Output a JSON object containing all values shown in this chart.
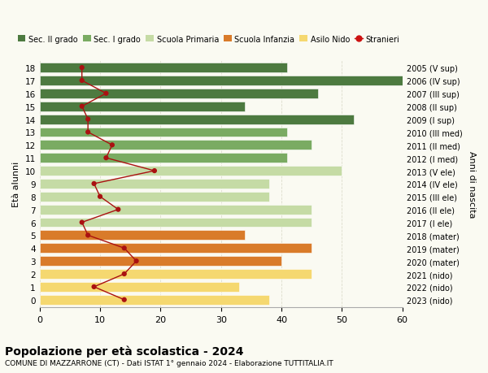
{
  "ages": [
    18,
    17,
    16,
    15,
    14,
    13,
    12,
    11,
    10,
    9,
    8,
    7,
    6,
    5,
    4,
    3,
    2,
    1,
    0
  ],
  "right_labels": [
    "2005 (V sup)",
    "2006 (IV sup)",
    "2007 (III sup)",
    "2008 (II sup)",
    "2009 (I sup)",
    "2010 (III med)",
    "2011 (II med)",
    "2012 (I med)",
    "2013 (V ele)",
    "2014 (IV ele)",
    "2015 (III ele)",
    "2016 (II ele)",
    "2017 (I ele)",
    "2018 (mater)",
    "2019 (mater)",
    "2020 (mater)",
    "2021 (nido)",
    "2022 (nido)",
    "2023 (nido)"
  ],
  "bar_values": [
    41,
    61,
    46,
    34,
    52,
    41,
    45,
    41,
    50,
    38,
    38,
    45,
    45,
    34,
    45,
    40,
    45,
    33,
    38
  ],
  "stranieri": [
    7,
    7,
    11,
    7,
    8,
    8,
    12,
    11,
    19,
    9,
    10,
    13,
    7,
    8,
    14,
    16,
    14,
    9,
    14
  ],
  "bar_colors": [
    "#4d7a40",
    "#4d7a40",
    "#4d7a40",
    "#4d7a40",
    "#4d7a40",
    "#7aab62",
    "#7aab62",
    "#7aab62",
    "#c5dba5",
    "#c5dba5",
    "#c5dba5",
    "#c5dba5",
    "#c5dba5",
    "#d97b2a",
    "#d97b2a",
    "#d97b2a",
    "#f5d870",
    "#f5d870",
    "#f5d870"
  ],
  "legend_labels": [
    "Sec. II grado",
    "Sec. I grado",
    "Scuola Primaria",
    "Scuola Infanzia",
    "Asilo Nido",
    "Stranieri"
  ],
  "legend_colors": [
    "#4d7a40",
    "#7aab62",
    "#c5dba5",
    "#d97b2a",
    "#f5d870",
    "#cc1111"
  ],
  "stranieri_color": "#aa1111",
  "ylabel_left": "Età alunni",
  "ylabel_right": "Anni di nascita",
  "xlim": [
    0,
    60
  ],
  "title": "Popolazione per età scolastica - 2024",
  "subtitle": "COMUNE DI MAZZARRONE (CT) - Dati ISTAT 1° gennaio 2024 - Elaborazione TUTTITALIA.IT",
  "bg_color": "#fafaf2",
  "grid_color": "#ddddcc"
}
